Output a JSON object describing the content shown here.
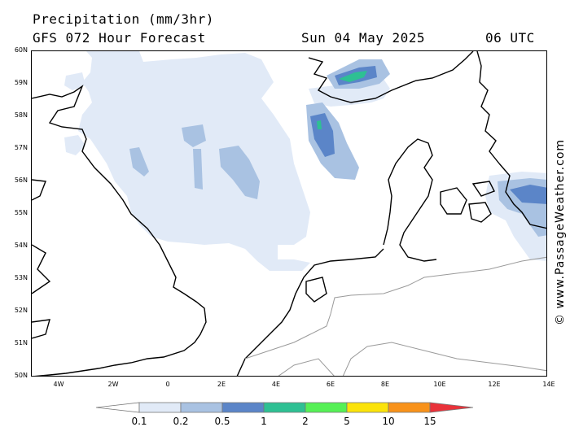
{
  "header": {
    "title": "Precipitation (mm/3hr)",
    "subtitle": "GFS 072 Hour Forecast",
    "date": "Sun 04 May 2025",
    "time": "06 UTC"
  },
  "credit": "© www.PassageWeather.com",
  "map": {
    "region": "North Sea",
    "lat_range": [
      50,
      60
    ],
    "lon_range": [
      -5,
      14
    ],
    "lat_labels": [
      "60N",
      "59N",
      "58N",
      "57N",
      "56N",
      "55N",
      "54N",
      "53N",
      "52N",
      "51N",
      "50N"
    ],
    "lon_labels": [
      "4W",
      "2W",
      "0",
      "2E",
      "4E",
      "6E",
      "8E",
      "10E",
      "12E",
      "14E"
    ]
  },
  "legend": {
    "thresholds": [
      "0.1",
      "0.2",
      "0.5",
      "1",
      "2",
      "5",
      "10",
      "15"
    ],
    "colors": [
      "#ffffff",
      "#e1eaf7",
      "#a9c2e2",
      "#5b85c8",
      "#2ec093",
      "#55f055",
      "#fbe30a",
      "#f8921a",
      "#e9323a"
    ]
  }
}
